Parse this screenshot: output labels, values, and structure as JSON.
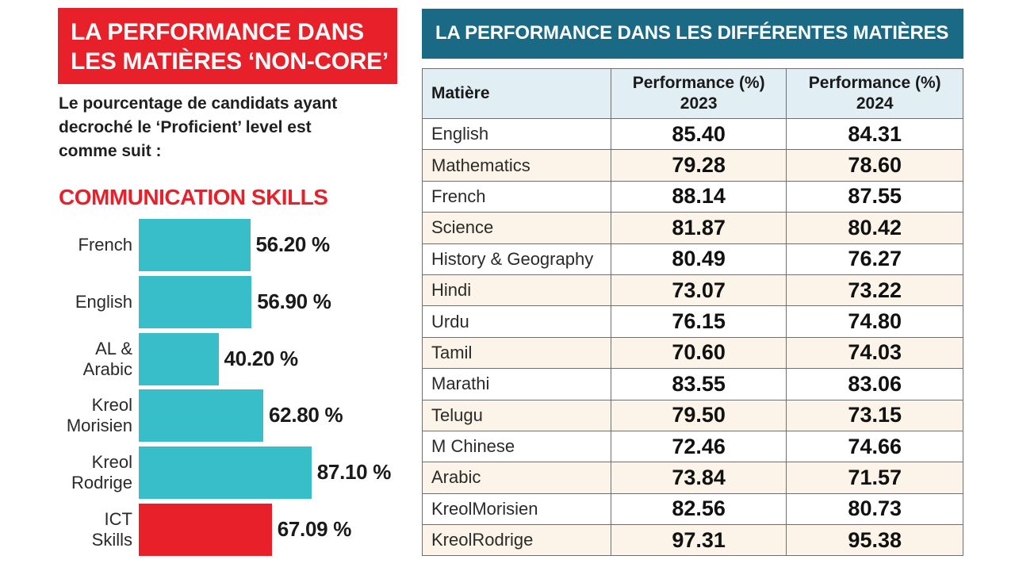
{
  "left_panel": {
    "banner_lines": [
      "LA PERFORMANCE DANS",
      "LES MATIÈRES ‘NON-CORE’"
    ],
    "intro_lines": [
      "Le pourcentage de candidats ayant",
      "decroché le ‘Proficient’ level est",
      "comme suit :"
    ],
    "section_title": "COMMUNICATION SKILLS"
  },
  "chart_data": [
    {
      "type": "bar",
      "orientation": "horizontal",
      "title": "COMMUNICATION SKILLS",
      "categories": [
        "French",
        "English",
        "AL & Arabic",
        "Kreol Morisien",
        "Kreol Rodrige",
        "ICT Skills"
      ],
      "category_lines": [
        [
          "French"
        ],
        [
          "English"
        ],
        [
          "AL &",
          "Arabic"
        ],
        [
          "Kreol",
          "Morisien"
        ],
        [
          "Kreol",
          "Rodrige"
        ],
        [
          "ICT",
          "Skills"
        ]
      ],
      "values": [
        56.2,
        56.9,
        40.2,
        62.8,
        87.1,
        67.09
      ],
      "value_labels": [
        "56.20 %",
        "56.90 %",
        "40.20 %",
        "62.80 %",
        "87.10 %",
        "67.09 %"
      ],
      "colors": [
        "#38bec9",
        "#38bec9",
        "#38bec9",
        "#38bec9",
        "#38bec9",
        "#e8202a"
      ],
      "unit": "%",
      "xlim": [
        0,
        100
      ]
    },
    {
      "type": "table",
      "title": "LA PERFORMANCE DANS LES DIFFÉRENTES MATIÈRES",
      "columns": [
        "Matière",
        "Performance (%) 2023",
        "Performance (%) 2024"
      ],
      "header": {
        "subject": "Matière",
        "col_2023_line1": "Performance (%)",
        "col_2023_line2": "2023",
        "col_2024_line1": "Performance (%)",
        "col_2024_line2": "2024"
      },
      "rows": [
        {
          "subject": "English",
          "y2023": "85.40",
          "y2024": "84.31"
        },
        {
          "subject": "Mathematics",
          "y2023": "79.28",
          "y2024": "78.60"
        },
        {
          "subject": "French",
          "y2023": "88.14",
          "y2024": "87.55"
        },
        {
          "subject": "Science",
          "y2023": "81.87",
          "y2024": "80.42"
        },
        {
          "subject": "History & Geography",
          "y2023": "80.49",
          "y2024": "76.27"
        },
        {
          "subject": "Hindi",
          "y2023": "73.07",
          "y2024": "73.22"
        },
        {
          "subject": "Urdu",
          "y2023": "76.15",
          "y2024": "74.80"
        },
        {
          "subject": "Tamil",
          "y2023": "70.60",
          "y2024": "74.03"
        },
        {
          "subject": "Marathi",
          "y2023": "83.55",
          "y2024": "83.06"
        },
        {
          "subject": "Telugu",
          "y2023": "79.50",
          "y2024": "73.15"
        },
        {
          "subject": "M Chinese",
          "y2023": "72.46",
          "y2024": "74.66"
        },
        {
          "subject": "Arabic",
          "y2023": "73.84",
          "y2024": "71.57"
        },
        {
          "subject": "KreolMorisien",
          "y2023": "82.56",
          "y2024": "80.73"
        },
        {
          "subject": "KreolRodrige",
          "y2023": "97.31",
          "y2024": "95.38"
        }
      ]
    }
  ],
  "colors": {
    "accent_red": "#e8202a",
    "bar_teal": "#38bec9",
    "banner_blue": "#1b6a85",
    "table_header_bg": "#e1eef4",
    "table_alt_row_bg": "#fcf4e8"
  }
}
